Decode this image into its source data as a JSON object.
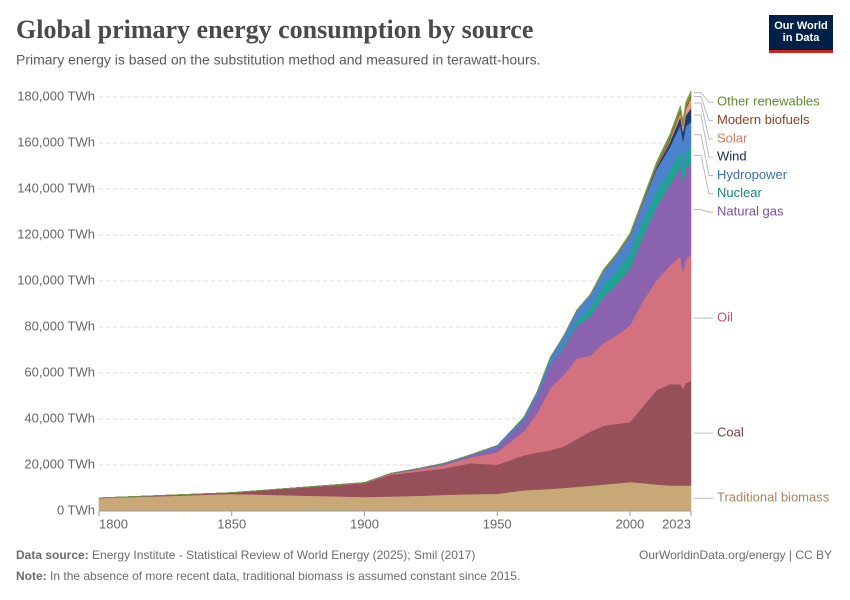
{
  "chart_data": {
    "type": "area",
    "title": "Global primary energy consumption by source",
    "subtitle": "Primary energy is based on the substitution method and measured in terawatt-hours.",
    "logo": "Our World in Data",
    "source_label": "Data source:",
    "source": "Energy Institute - Statistical Review of World Energy (2025); Smil (2017)",
    "note_label": "Note:",
    "note": "In the absence of more recent data, traditional biomass is assumed constant since 2015.",
    "url": "OurWorldinData.org/energy | CC BY",
    "x": [
      1800,
      1850,
      1900,
      1910,
      1920,
      1930,
      1940,
      1950,
      1960,
      1965,
      1970,
      1975,
      1980,
      1985,
      1990,
      1995,
      2000,
      2005,
      2010,
      2015,
      2019,
      2020,
      2021,
      2022,
      2023
    ],
    "xlim": [
      1800,
      2023
    ],
    "xticks": [
      1800,
      1850,
      1900,
      1950,
      2000,
      2023
    ],
    "ylim": [
      0,
      180000
    ],
    "yticks": [
      {
        "value": 0,
        "label": "0 TWh"
      },
      {
        "value": 20000,
        "label": "20,000 TWh"
      },
      {
        "value": 40000,
        "label": "40,000 TWh"
      },
      {
        "value": 60000,
        "label": "60,000 TWh"
      },
      {
        "value": 80000,
        "label": "80,000 TWh"
      },
      {
        "value": 100000,
        "label": "100,000 TWh"
      },
      {
        "value": 120000,
        "label": "120,000 TWh"
      },
      {
        "value": 140000,
        "label": "140,000 TWh"
      },
      {
        "value": 160000,
        "label": "160,000 TWh"
      },
      {
        "value": 180000,
        "label": "180,000 TWh"
      }
    ],
    "grid": true,
    "series": [
      {
        "name": "Traditional biomass",
        "color": "#c9a878",
        "label_color": "#a8865a",
        "values": [
          5600,
          7400,
          6100,
          6300,
          6600,
          7000,
          7300,
          7500,
          9000,
          9300,
          9600,
          10000,
          10500,
          11000,
          11500,
          12000,
          12600,
          12100,
          11500,
          11100,
          11100,
          11100,
          11100,
          11100,
          11100
        ]
      },
      {
        "name": "Coal",
        "color": "#95505a",
        "label_color": "#7a3a44",
        "values": [
          100,
          600,
          6000,
          9500,
          10500,
          11500,
          13500,
          12600,
          15200,
          16100,
          16800,
          18000,
          20800,
          23500,
          25500,
          25900,
          26000,
          33500,
          41000,
          44000,
          44000,
          42000,
          44500,
          45000,
          45500
        ]
      },
      {
        "name": "Oil",
        "color": "#d3717f",
        "label_color": "#c4536a",
        "values": [
          0,
          0,
          200,
          400,
          900,
          1500,
          2500,
          5400,
          10400,
          17000,
          27000,
          31000,
          35000,
          33000,
          36000,
          38500,
          42000,
          46000,
          47700,
          51500,
          55500,
          51000,
          53500,
          54500,
          54500
        ]
      },
      {
        "name": "Natural gas",
        "color": "#8b62ad",
        "label_color": "#7a4ea0",
        "values": [
          0,
          0,
          60,
          150,
          250,
          500,
          800,
          2100,
          4500,
          7000,
          10000,
          12000,
          14300,
          17000,
          20000,
          22000,
          25000,
          28000,
          32000,
          35000,
          39000,
          38500,
          40000,
          39500,
          40000
        ]
      },
      {
        "name": "Nuclear",
        "color": "#21a295",
        "label_color": "#17857b",
        "values": [
          0,
          0,
          0,
          0,
          0,
          0,
          0,
          0,
          0,
          70,
          230,
          1100,
          1900,
          4000,
          5500,
          6200,
          6800,
          7100,
          7000,
          6500,
          7100,
          6800,
          7000,
          6700,
          7000
        ]
      },
      {
        "name": "Hydropower",
        "color": "#4d82cc",
        "label_color": "#3a6fb8",
        "values": [
          0,
          0,
          30,
          100,
          200,
          300,
          400,
          900,
          1700,
          2300,
          3200,
          4000,
          4800,
          5300,
          5800,
          6600,
          7200,
          7800,
          9300,
          10000,
          11000,
          11300,
          11100,
          11400,
          11000
        ]
      },
      {
        "name": "Wind",
        "color": "#1c3c6e",
        "label_color": "#102d5a",
        "values": [
          0,
          0,
          0,
          0,
          0,
          0,
          0,
          0,
          0,
          0,
          0,
          0,
          0,
          0,
          0,
          20,
          80,
          270,
          900,
          2200,
          3700,
          4100,
          4700,
          5300,
          6100
        ]
      },
      {
        "name": "Solar",
        "color": "#e99a7b",
        "label_color": "#d97a57",
        "values": [
          0,
          0,
          0,
          0,
          0,
          0,
          0,
          0,
          0,
          0,
          0,
          0,
          0,
          0,
          0,
          0,
          0,
          10,
          90,
          700,
          1800,
          2200,
          2700,
          3400,
          4300
        ]
      },
      {
        "name": "Modern biofuels",
        "color": "#a3552f",
        "label_color": "#8f4422",
        "values": [
          0,
          0,
          0,
          0,
          0,
          0,
          0,
          0,
          0,
          0,
          0,
          0,
          0,
          0,
          200,
          250,
          300,
          500,
          1000,
          1200,
          1300,
          1200,
          1300,
          1300,
          1400
        ]
      },
      {
        "name": "Other renewables",
        "color": "#6aa03c",
        "label_color": "#5a8f2e",
        "values": [
          0,
          0,
          0,
          0,
          0,
          0,
          0,
          0,
          0,
          0,
          100,
          150,
          250,
          400,
          600,
          700,
          800,
          1000,
          1300,
          1600,
          1800,
          1850,
          1900,
          1950,
          2000
        ]
      }
    ]
  }
}
